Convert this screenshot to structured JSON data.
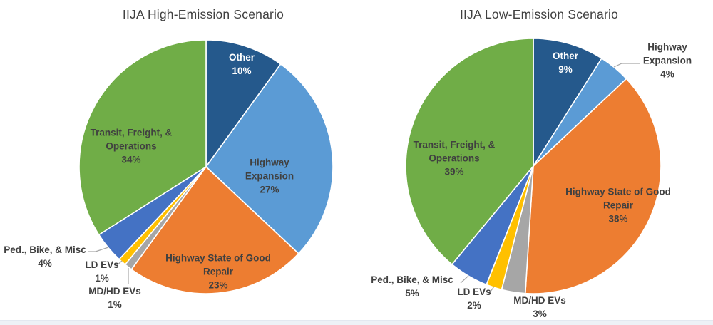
{
  "figure": {
    "background": "#ffffff",
    "bottom_strip_color": "#edf1f6",
    "text_color": "#404040"
  },
  "chart_data": [
    {
      "type": "pie",
      "title": "IIJA High-Emission Scenario",
      "start_angle_deg": 0,
      "direction": "clockwise",
      "legend": "none",
      "slices": [
        {
          "label": "Other",
          "value": 10,
          "pct_label": "10%",
          "color": "#25598c",
          "label_placement": "inside"
        },
        {
          "label": "Highway Expansion",
          "value": 27,
          "pct_label": "27%",
          "color": "#5b9bd5",
          "label_placement": "inside"
        },
        {
          "label": "Highway State of Good Repair",
          "value": 23,
          "pct_label": "23%",
          "color": "#ed7d31",
          "label_placement": "inside"
        },
        {
          "label": "MD/HD EVs",
          "value": 1,
          "pct_label": "1%",
          "color": "#a6a6a6",
          "label_placement": "outside"
        },
        {
          "label": "LD EVs",
          "value": 1,
          "pct_label": "1%",
          "color": "#ffc000",
          "label_placement": "outside"
        },
        {
          "label": "Ped., Bike, & Misc",
          "value": 4,
          "pct_label": "4%",
          "color": "#4472c4",
          "label_placement": "outside"
        },
        {
          "label": "Transit, Freight, & Operations",
          "value": 34,
          "pct_label": "34%",
          "color": "#70ad47",
          "label_placement": "inside"
        }
      ]
    },
    {
      "type": "pie",
      "title": "IIJA Low-Emission Scenario",
      "start_angle_deg": 0,
      "direction": "clockwise",
      "legend": "none",
      "slices": [
        {
          "label": "Other",
          "value": 9,
          "pct_label": "9%",
          "color": "#25598c",
          "label_placement": "inside"
        },
        {
          "label": "Highway Expansion",
          "value": 4,
          "pct_label": "4%",
          "color": "#5b9bd5",
          "label_placement": "outside"
        },
        {
          "label": "Highway State of Good Repair",
          "value": 38,
          "pct_label": "38%",
          "color": "#ed7d31",
          "label_placement": "inside"
        },
        {
          "label": "MD/HD EVs",
          "value": 3,
          "pct_label": "3%",
          "color": "#a6a6a6",
          "label_placement": "outside"
        },
        {
          "label": "LD EVs",
          "value": 2,
          "pct_label": "2%",
          "color": "#ffc000",
          "label_placement": "outside"
        },
        {
          "label": "Ped., Bike, & Misc",
          "value": 5,
          "pct_label": "5%",
          "color": "#4472c4",
          "label_placement": "outside"
        },
        {
          "label": "Transit, Freight, & Operations",
          "value": 39,
          "pct_label": "39%",
          "color": "#70ad47",
          "label_placement": "inside"
        }
      ]
    }
  ]
}
